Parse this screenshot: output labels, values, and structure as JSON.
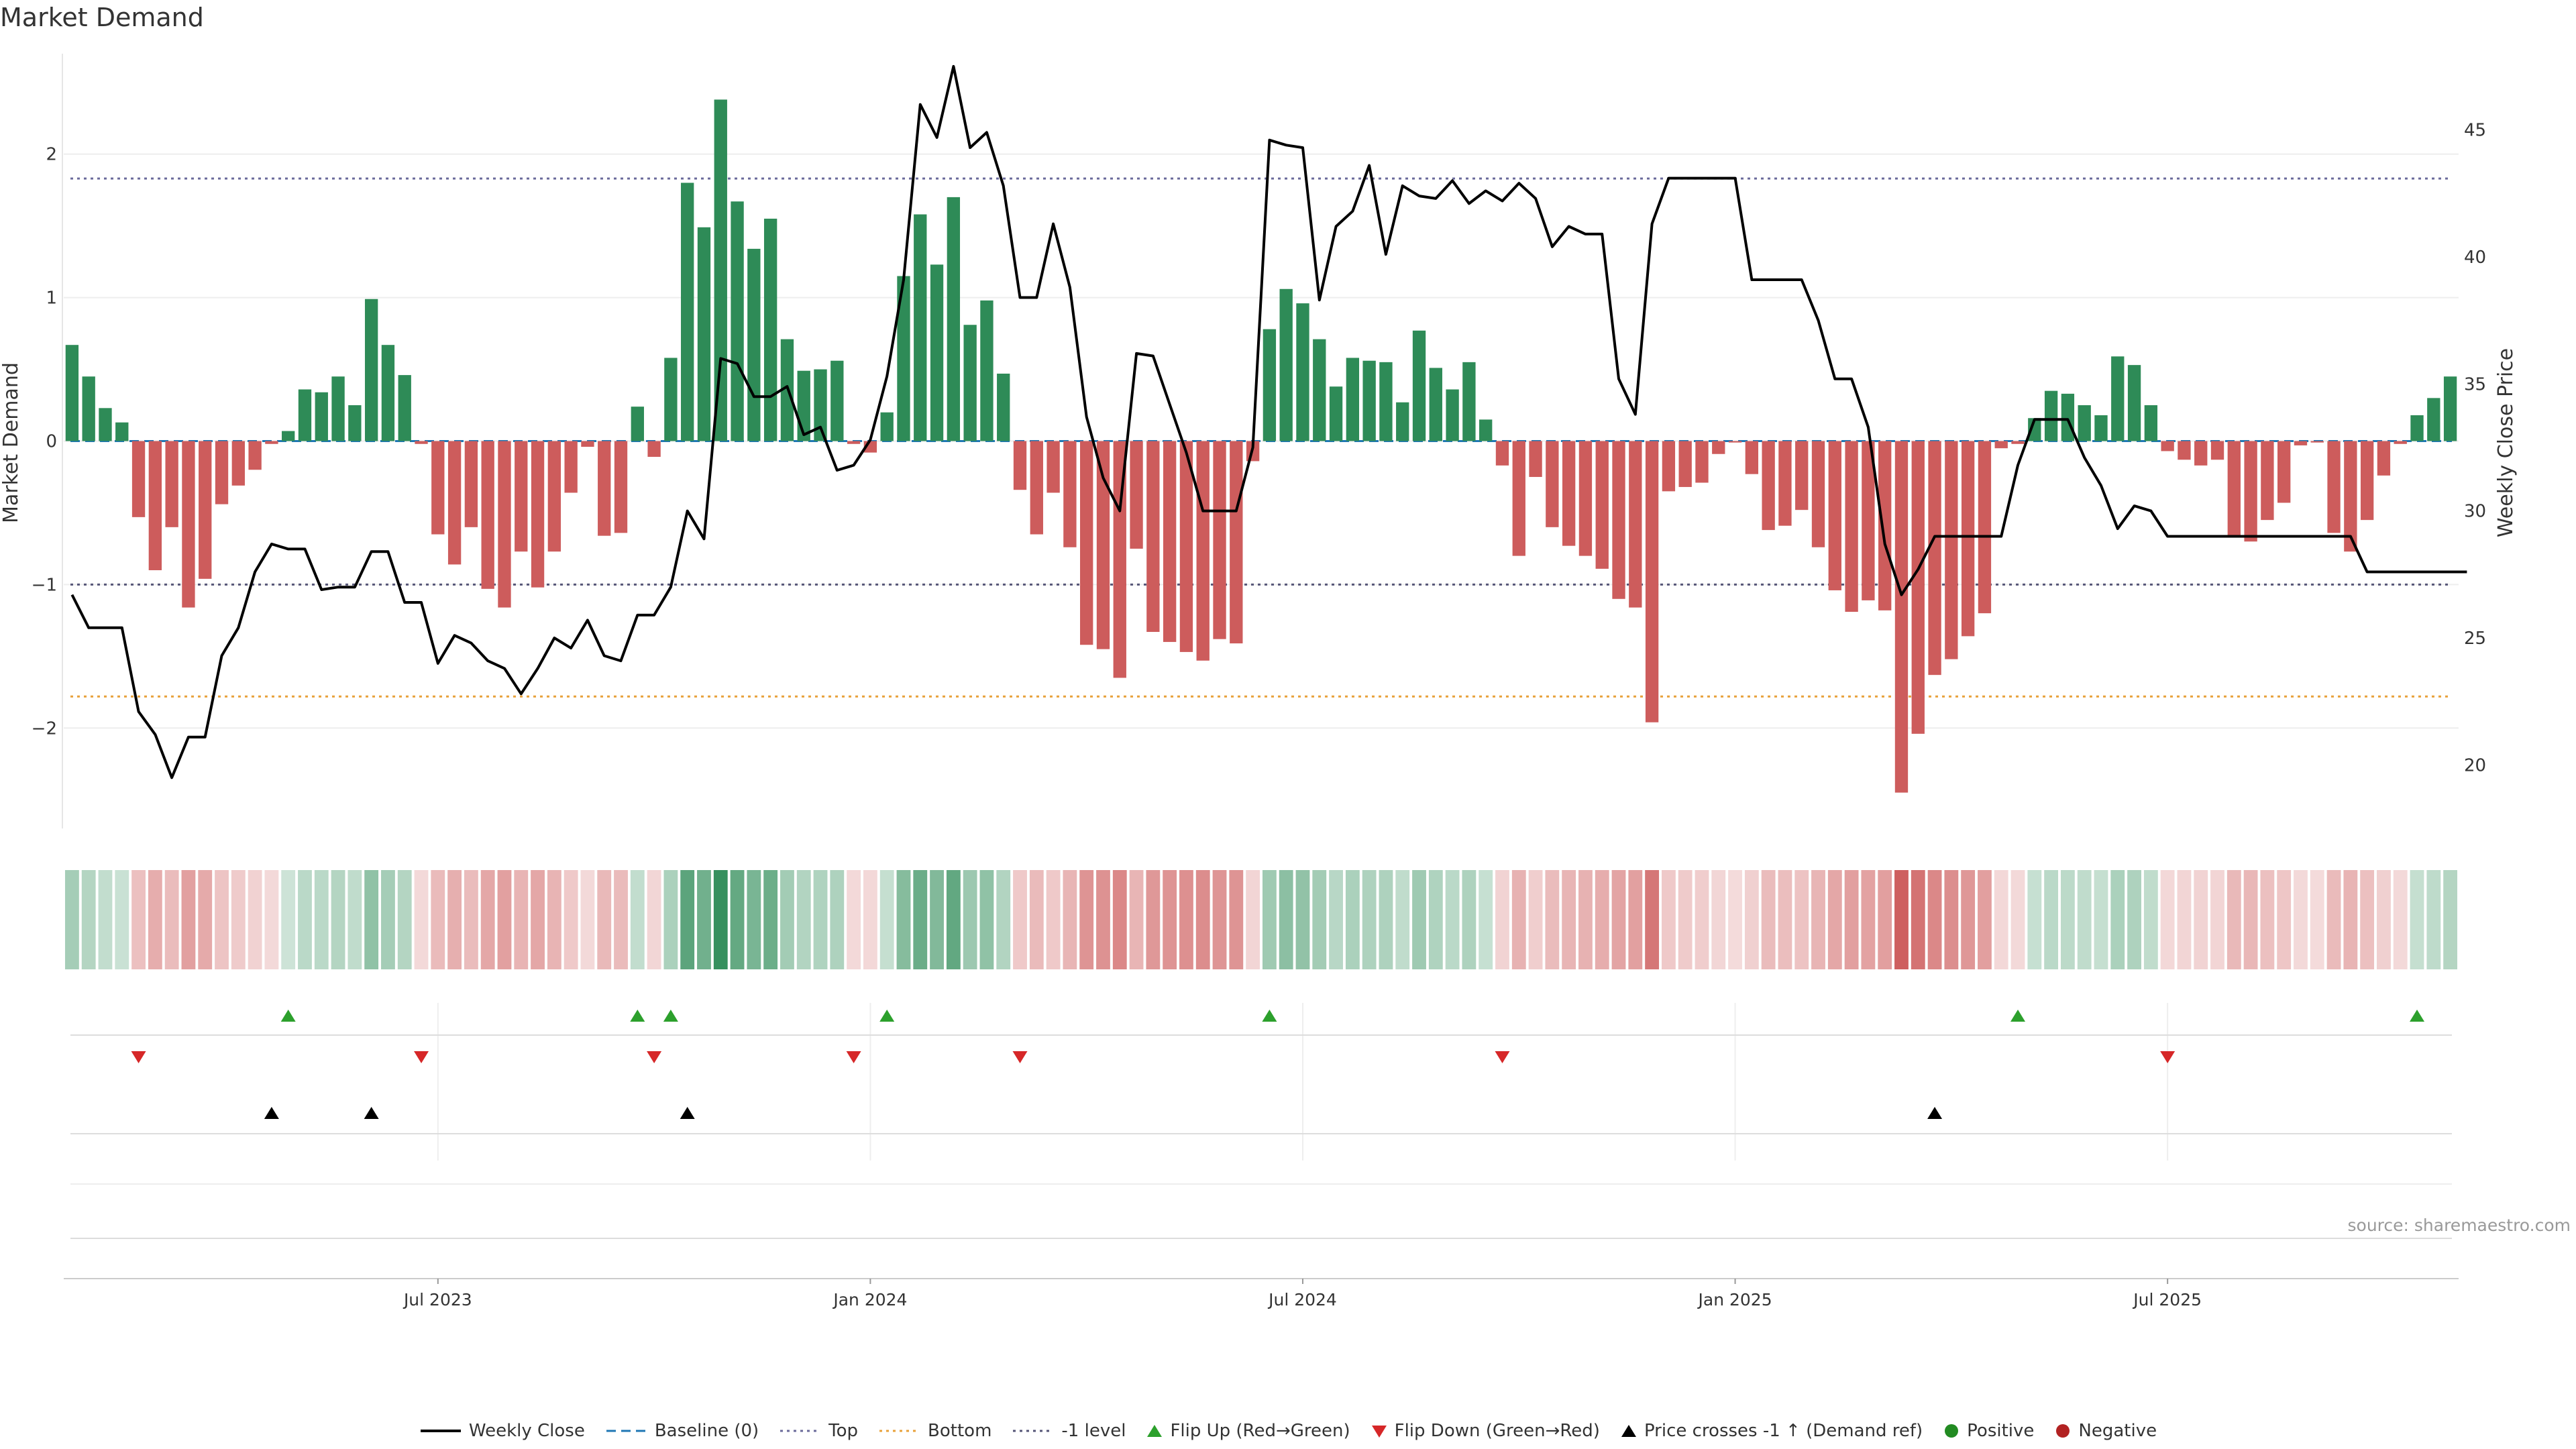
{
  "title": "Market Demand",
  "source": "source: sharemaestro.com",
  "colors": {
    "positive": "#2e8b57",
    "negative": "#cd5c5c",
    "price": "#000000",
    "baseline": "#1f77b4",
    "top": "#6b6b9b",
    "bottom": "#e8a13a",
    "minus1": "#555577",
    "flip_up": "#2ca02c",
    "flip_down": "#d62728",
    "cross": "#000000"
  },
  "legend": [
    {
      "label": "Weekly Close",
      "kind": "line",
      "color": "#000000"
    },
    {
      "label": "Baseline (0)",
      "kind": "dash",
      "color": "#1f77b4"
    },
    {
      "label": "Top",
      "kind": "dot",
      "color": "#6b6b9b"
    },
    {
      "label": "Bottom",
      "kind": "dot",
      "color": "#e8a13a"
    },
    {
      "label": "-1 level",
      "kind": "dot",
      "color": "#555577"
    },
    {
      "label": "Flip Up (Red→Green)",
      "kind": "tri-up",
      "color": "#2ca02c"
    },
    {
      "label": "Flip Down (Green→Red)",
      "kind": "tri-down",
      "color": "#d62728"
    },
    {
      "label": "Price crosses -1 ↑ (Demand ref)",
      "kind": "tri-up",
      "color": "#000000"
    },
    {
      "label": "Positive",
      "kind": "dot-marker",
      "color": "#228b22"
    },
    {
      "label": "Negative",
      "kind": "dot-marker",
      "color": "#b22222"
    }
  ],
  "chart_data": {
    "type": "bar",
    "ylabel_left": "Market Demand",
    "ylabel_right": "Weekly Close Price",
    "ylim_left": [
      -2.7,
      2.7
    ],
    "ylim_right": [
      17.5,
      48
    ],
    "left_ticks": [
      2,
      1,
      0,
      -1,
      -2
    ],
    "left_tick_labels": [
      "2",
      "1",
      "0",
      "−1",
      "−2"
    ],
    "right_ticks": [
      45,
      40,
      35,
      30,
      25,
      20
    ],
    "x_ticks": [
      {
        "label": "Jul 2023",
        "index": 22
      },
      {
        "label": "Jan 2024",
        "index": 48
      },
      {
        "label": "Jul 2024",
        "index": 74
      },
      {
        "label": "Jan 2025",
        "index": 100
      },
      {
        "label": "Jul 2025",
        "index": 126
      }
    ],
    "levels": {
      "top": 1.83,
      "bottom": -1.78,
      "minus1": -1.0,
      "baseline": 0
    },
    "demand": [
      0.67,
      0.45,
      0.23,
      0.13,
      -0.53,
      -0.9,
      -0.6,
      -1.16,
      -0.96,
      -0.44,
      -0.31,
      -0.2,
      -0.02,
      0.07,
      0.36,
      0.34,
      0.45,
      0.25,
      0.99,
      0.67,
      0.46,
      -0.02,
      -0.65,
      -0.86,
      -0.6,
      -1.03,
      -1.16,
      -0.77,
      -1.02,
      -0.77,
      -0.36,
      -0.04,
      -0.66,
      -0.64,
      0.24,
      -0.11,
      0.58,
      1.8,
      1.49,
      2.38,
      1.67,
      1.34,
      1.55,
      0.71,
      0.49,
      0.5,
      0.56,
      -0.02,
      -0.08,
      0.2,
      1.15,
      1.58,
      1.23,
      1.7,
      0.81,
      0.98,
      0.47,
      -0.34,
      -0.65,
      -0.36,
      -0.74,
      -1.42,
      -1.45,
      -1.65,
      -0.75,
      -1.33,
      -1.4,
      -1.47,
      -1.53,
      -1.38,
      -1.41,
      -0.14,
      0.78,
      1.06,
      0.96,
      0.71,
      0.38,
      0.58,
      0.56,
      0.55,
      0.27,
      0.77,
      0.51,
      0.36,
      0.55,
      0.15,
      -0.17,
      -0.8,
      -0.25,
      -0.6,
      -0.73,
      -0.8,
      -0.89,
      -1.1,
      -1.16,
      -1.96,
      -0.35,
      -0.32,
      -0.29,
      -0.09,
      -0.01,
      -0.23,
      -0.62,
      -0.59,
      -0.48,
      -0.74,
      -1.04,
      -1.19,
      -1.11,
      -1.18,
      -2.45,
      -2.04,
      -1.63,
      -1.52,
      -1.36,
      -1.2,
      -0.05,
      -0.02,
      0.16,
      0.35,
      0.33,
      0.25,
      0.18,
      0.59,
      0.53,
      0.25,
      -0.07,
      -0.13,
      -0.17,
      -0.13,
      -0.66,
      -0.7,
      -0.55,
      -0.43,
      -0.03,
      -0.01,
      -0.64,
      -0.77,
      -0.55,
      -0.24,
      -0.02,
      0.18,
      0.3,
      0.45
    ],
    "price": [
      26.7,
      25.4,
      25.4,
      25.4,
      22.1,
      21.2,
      19.5,
      21.1,
      21.1,
      24.3,
      25.4,
      27.6,
      28.7,
      28.5,
      28.5,
      26.9,
      27.0,
      27.0,
      28.4,
      28.4,
      26.4,
      26.4,
      24.0,
      25.1,
      24.8,
      24.1,
      23.8,
      22.8,
      23.8,
      25.0,
      24.6,
      25.7,
      24.3,
      24.1,
      25.9,
      25.9,
      27.0,
      30.0,
      28.9,
      36.0,
      35.8,
      34.5,
      34.5,
      34.9,
      33.0,
      33.3,
      31.6,
      31.8,
      32.8,
      35.3,
      39.1,
      46.0,
      44.7,
      47.5,
      44.3,
      44.9,
      42.8,
      38.4,
      38.4,
      41.3,
      38.8,
      33.7,
      31.3,
      30.0,
      36.2,
      36.1,
      34.2,
      32.3,
      30.0,
      30.0,
      30.0,
      32.5,
      44.6,
      44.4,
      44.3,
      38.3,
      41.2,
      41.8,
      43.6,
      40.1,
      42.8,
      42.4,
      42.3,
      43.0,
      42.1,
      42.6,
      42.2,
      42.9,
      42.3,
      40.4,
      41.2,
      40.9,
      40.9,
      35.2,
      33.8,
      41.3,
      43.1,
      43.1,
      43.1,
      43.1,
      43.1,
      39.1,
      39.1,
      39.1,
      39.1,
      37.5,
      35.2,
      35.2,
      33.3,
      28.7,
      26.7,
      27.7,
      29.0,
      29.0,
      29.0,
      29.0,
      29.0,
      31.8,
      33.6,
      33.6,
      33.6,
      32.1,
      31.0,
      29.3,
      30.2,
      30.0,
      29.0,
      29.0,
      29.0,
      29.0,
      29.0,
      29.0,
      29.0,
      29.0,
      29.0,
      29.0,
      29.0,
      29.0,
      27.6,
      27.6,
      27.6,
      27.6,
      27.6,
      27.6,
      27.6
    ],
    "flip_up_indices": [
      13,
      34,
      36,
      49,
      72,
      117,
      141
    ],
    "flip_down_indices": [
      4,
      21,
      35,
      47,
      57,
      86,
      126
    ],
    "cross_up_indices": [
      12,
      18,
      37,
      112
    ]
  }
}
